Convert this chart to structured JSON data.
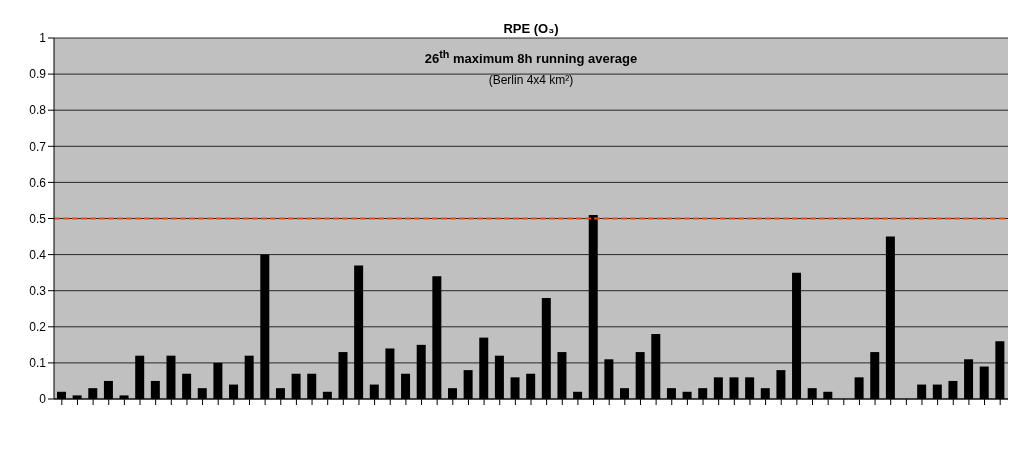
{
  "chart_data": {
    "type": "bar",
    "title": "RPE (O₃)",
    "subtitle": "26$^{th}$ maximum 8h running average",
    "annotations": [
      "(Berlin 4x4 km²)"
    ],
    "categories": [
      null,
      null,
      null,
      null,
      null,
      null,
      null,
      null,
      null,
      null,
      null,
      null,
      null,
      null,
      null,
      null,
      null,
      null,
      null,
      null,
      null,
      null,
      null,
      null,
      null,
      null,
      null,
      null,
      null,
      null,
      null,
      null,
      null,
      null,
      null,
      null,
      null,
      null,
      null,
      null,
      null,
      null,
      null,
      null,
      null,
      null,
      null,
      null,
      null,
      null,
      null,
      null,
      null,
      null,
      null,
      null,
      null,
      null,
      null,
      null,
      null
    ],
    "values": [
      0.02,
      0.01,
      0.03,
      0.05,
      0.01,
      0.12,
      0.05,
      0.12,
      0.07,
      0.03,
      0.1,
      0.04,
      0.12,
      0.4,
      0.03,
      0.07,
      0.07,
      0.02,
      0.13,
      0.37,
      0.04,
      0.14,
      0.07,
      0.15,
      0.34,
      0.03,
      0.08,
      0.17,
      0.12,
      0.06,
      0.07,
      0.28,
      0.13,
      0.02,
      0.51,
      0.11,
      0.03,
      0.13,
      0.18,
      0.03,
      0.02,
      0.03,
      0.06,
      0.06,
      0.06,
      0.03,
      0.08,
      0.35,
      0.03,
      0.02,
      0,
      0.06,
      0.13,
      0.45,
      0,
      0.04,
      0.04,
      0.05,
      0.11,
      0.09,
      0.16
    ],
    "color": "#000000",
    "ylim": [
      0,
      1
    ],
    "yticks": [
      0,
      0.1,
      0.2,
      0.3,
      0.4,
      0.5,
      0.6,
      0.7,
      0.8,
      0.9,
      1
    ],
    "grid": "y",
    "legend": false,
    "ref_lines": [
      {
        "axis": "y",
        "value": 0.5,
        "color": "#e04a1a",
        "line_style": "dashed"
      }
    ]
  }
}
